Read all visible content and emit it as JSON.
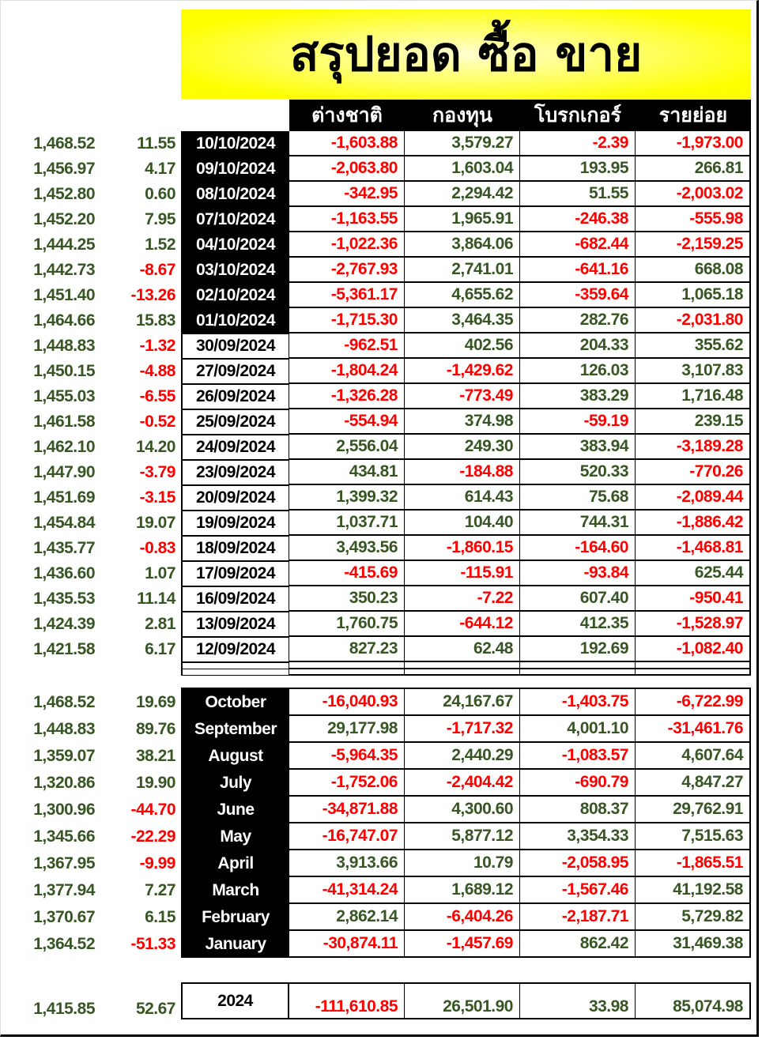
{
  "title": "สรุปยอด ซื้อ ขาย",
  "headers": [
    "ต่างชาติ",
    "กองทุน",
    "โบรกเกอร์",
    "รายย่อย"
  ],
  "colors": {
    "positive": "#375623",
    "negative": "#ff0000",
    "title_bg": "#ffff00"
  },
  "daily": [
    {
      "index": "1,468.52",
      "change": "11.55",
      "date": "10/10/2024",
      "highlight": true,
      "values": [
        "-1,603.88",
        "3,579.27",
        "-2.39",
        "-1,973.00"
      ]
    },
    {
      "index": "1,456.97",
      "change": "4.17",
      "date": "09/10/2024",
      "highlight": true,
      "values": [
        "-2,063.80",
        "1,603.04",
        "193.95",
        "266.81"
      ]
    },
    {
      "index": "1,452.80",
      "change": "0.60",
      "date": "08/10/2024",
      "highlight": true,
      "values": [
        "-342.95",
        "2,294.42",
        "51.55",
        "-2,003.02"
      ]
    },
    {
      "index": "1,452.20",
      "change": "7.95",
      "date": "07/10/2024",
      "highlight": true,
      "values": [
        "-1,163.55",
        "1,965.91",
        "-246.38",
        "-555.98"
      ]
    },
    {
      "index": "1,444.25",
      "change": "1.52",
      "date": "04/10/2024",
      "highlight": true,
      "values": [
        "-1,022.36",
        "3,864.06",
        "-682.44",
        "-2,159.25"
      ]
    },
    {
      "index": "1,442.73",
      "change": "-8.67",
      "date": "03/10/2024",
      "highlight": true,
      "values": [
        "-2,767.93",
        "2,741.01",
        "-641.16",
        "668.08"
      ]
    },
    {
      "index": "1,451.40",
      "change": "-13.26",
      "date": "02/10/2024",
      "highlight": true,
      "values": [
        "-5,361.17",
        "4,655.62",
        "-359.64",
        "1,065.18"
      ]
    },
    {
      "index": "1,464.66",
      "change": "15.83",
      "date": "01/10/2024",
      "highlight": true,
      "values": [
        "-1,715.30",
        "3,464.35",
        "282.76",
        "-2,031.80"
      ]
    },
    {
      "index": "1,448.83",
      "change": "-1.32",
      "date": "30/09/2024",
      "highlight": false,
      "values": [
        "-962.51",
        "402.56",
        "204.33",
        "355.62"
      ]
    },
    {
      "index": "1,450.15",
      "change": "-4.88",
      "date": "27/09/2024",
      "highlight": false,
      "values": [
        "-1,804.24",
        "-1,429.62",
        "126.03",
        "3,107.83"
      ]
    },
    {
      "index": "1,455.03",
      "change": "-6.55",
      "date": "26/09/2024",
      "highlight": false,
      "values": [
        "-1,326.28",
        "-773.49",
        "383.29",
        "1,716.48"
      ]
    },
    {
      "index": "1,461.58",
      "change": "-0.52",
      "date": "25/09/2024",
      "highlight": false,
      "values": [
        "-554.94",
        "374.98",
        "-59.19",
        "239.15"
      ]
    },
    {
      "index": "1,462.10",
      "change": "14.20",
      "date": "24/09/2024",
      "highlight": false,
      "values": [
        "2,556.04",
        "249.30",
        "383.94",
        "-3,189.28"
      ]
    },
    {
      "index": "1,447.90",
      "change": "-3.79",
      "date": "23/09/2024",
      "highlight": false,
      "values": [
        "434.81",
        "-184.88",
        "520.33",
        "-770.26"
      ]
    },
    {
      "index": "1,451.69",
      "change": "-3.15",
      "date": "20/09/2024",
      "highlight": false,
      "values": [
        "1,399.32",
        "614.43",
        "75.68",
        "-2,089.44"
      ]
    },
    {
      "index": "1,454.84",
      "change": "19.07",
      "date": "19/09/2024",
      "highlight": false,
      "values": [
        "1,037.71",
        "104.40",
        "744.31",
        "-1,886.42"
      ]
    },
    {
      "index": "1,435.77",
      "change": "-0.83",
      "date": "18/09/2024",
      "highlight": false,
      "values": [
        "3,493.56",
        "-1,860.15",
        "-164.60",
        "-1,468.81"
      ]
    },
    {
      "index": "1,436.60",
      "change": "1.07",
      "date": "17/09/2024",
      "highlight": false,
      "values": [
        "-415.69",
        "-115.91",
        "-93.84",
        "625.44"
      ]
    },
    {
      "index": "1,435.53",
      "change": "11.14",
      "date": "16/09/2024",
      "highlight": false,
      "values": [
        "350.23",
        "-7.22",
        "607.40",
        "-950.41"
      ]
    },
    {
      "index": "1,424.39",
      "change": "2.81",
      "date": "13/09/2024",
      "highlight": false,
      "values": [
        "1,760.75",
        "-644.12",
        "412.35",
        "-1,528.97"
      ]
    },
    {
      "index": "1,421.58",
      "change": "6.17",
      "date": "12/09/2024",
      "highlight": false,
      "values": [
        "827.23",
        "62.48",
        "192.69",
        "-1,082.40"
      ]
    }
  ],
  "monthly": [
    {
      "index": "1,468.52",
      "change": "19.69",
      "month": "October",
      "values": [
        "-16,040.93",
        "24,167.67",
        "-1,403.75",
        "-6,722.99"
      ]
    },
    {
      "index": "1,448.83",
      "change": "89.76",
      "month": "September",
      "values": [
        "29,177.98",
        "-1,717.32",
        "4,001.10",
        "-31,461.76"
      ]
    },
    {
      "index": "1,359.07",
      "change": "38.21",
      "month": "August",
      "values": [
        "-5,964.35",
        "2,440.29",
        "-1,083.57",
        "4,607.64"
      ]
    },
    {
      "index": "1,320.86",
      "change": "19.90",
      "month": "July",
      "values": [
        "-1,752.06",
        "-2,404.42",
        "-690.79",
        "4,847.27"
      ]
    },
    {
      "index": "1,300.96",
      "change": "-44.70",
      "month": "June",
      "values": [
        "-34,871.88",
        "4,300.60",
        "808.37",
        "29,762.91"
      ]
    },
    {
      "index": "1,345.66",
      "change": "-22.29",
      "month": "May",
      "values": [
        "-16,747.07",
        "5,877.12",
        "3,354.33",
        "7,515.63"
      ]
    },
    {
      "index": "1,367.95",
      "change": "-9.99",
      "month": "April",
      "values": [
        "3,913.66",
        "10.79",
        "-2,058.95",
        "-1,865.51"
      ]
    },
    {
      "index": "1,377.94",
      "change": "7.27",
      "month": "March",
      "values": [
        "-41,314.24",
        "1,689.12",
        "-1,567.46",
        "41,192.58"
      ]
    },
    {
      "index": "1,370.67",
      "change": "6.15",
      "month": "February",
      "values": [
        "2,862.14",
        "-6,404.26",
        "-2,187.71",
        "5,729.82"
      ]
    },
    {
      "index": "1,364.52",
      "change": "-51.33",
      "month": "January",
      "values": [
        "-30,874.11",
        "-1,457.69",
        "862.42",
        "31,469.38"
      ]
    }
  ],
  "yearly": {
    "index": "1,415.85",
    "change": "52.67",
    "year": "2024",
    "values": [
      "-111,610.85",
      "26,501.90",
      "33.98",
      "85,074.98"
    ]
  }
}
